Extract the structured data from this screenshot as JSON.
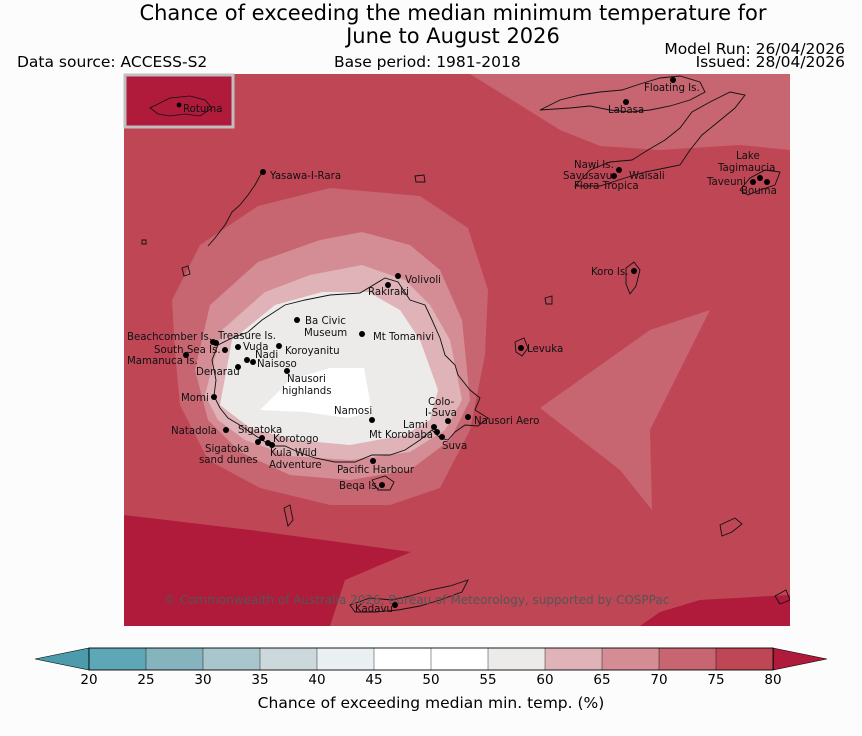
{
  "header": {
    "title_line1": "Chance of exceeding the median minimum temperature for",
    "title_line2": "June to August 2026",
    "data_source": "Data source: ACCESS-S2",
    "base_period": "Base period: 1981-2018",
    "model_run": "Model Run: 26/04/2026",
    "issued": "Issued: 28/04/2026"
  },
  "map": {
    "inset_label": "Rotuma",
    "copyright": "© Commonwealth of Australia 2026, Bureau of Meteorology, supported by COSPPac",
    "places": {
      "floating": "Floating Is.",
      "labasa": "Labasa",
      "yasawa": "Yasawa-I-Rara",
      "nawi": "Nawi Is.",
      "savusavu": "Savusavu",
      "flora": "Flora Tropica",
      "waisali": "Waisali",
      "lake": "Lake",
      "tagimaucia": "Tagimaucia",
      "taveuni": "Taveuni",
      "bouma": "Bouma",
      "koro": "Koro Is.",
      "volivoli": "Volivoli",
      "rakiraki": "Rakiraki",
      "ba_civic": "Ba Civic",
      "museum": "Museum",
      "tomanivi": "Mt Tomanivi",
      "beachcomber": "Beachcomber Is.",
      "treasure": "Treasure Is.",
      "vuda": "Vuda",
      "south_sea": "South Sea Is.",
      "koroyanitu": "Koroyanitu",
      "nadi": "Nadi",
      "mamanuca": "Mamanuca Is.",
      "naisoso": "Naisoso",
      "denarau": "Denarau",
      "nausori_highlands_1": "Nausori",
      "nausori_highlands_2": "highlands",
      "levuka": "Levuka",
      "momi": "Momi",
      "namosi": "Namosi",
      "colo_1": "Colo-",
      "colo_2": "I-Suva",
      "natadola": "Natadola",
      "nausori_aero": "Nausori Aero",
      "sigatoka": "Sigatoka",
      "lami": "Lami",
      "korotogo": "Korotogo",
      "korobaba": "Mt Korobaba",
      "sigatoka_dunes_1": "Sigatoka",
      "sigatoka_dunes_2": "sand dunes",
      "suva": "Suva",
      "kula_1": "Kula Wild",
      "kula_2": "Adventure",
      "pacific_harbour": "Pacific Harbour",
      "beqa": "Beqa Is.",
      "kadavu": "Kadavu"
    }
  },
  "colorbar": {
    "ticks": [
      "20",
      "25",
      "30",
      "35",
      "40",
      "45",
      "50",
      "55",
      "60",
      "65",
      "70",
      "75",
      "80"
    ],
    "colors": [
      "#5ea7b6",
      "#85b3be",
      "#a8c6cc",
      "#cbd9dd",
      "#eaf0f1",
      "#ffffff",
      "#ffffff",
      "#ecebea",
      "#e0b3b8",
      "#d58d95",
      "#c76571",
      "#bf4655"
    ],
    "below_color": "#4b9bac",
    "above_color": "#b01a3b",
    "label": "Chance of exceeding median min. temp. (%)"
  },
  "colors": {
    "p80": "#b01a3b",
    "p75": "#bf4655",
    "p70": "#c76571",
    "p65": "#d58d95",
    "p60": "#e0b3b8",
    "p55": "#ecebea",
    "p50": "#ffffff"
  }
}
